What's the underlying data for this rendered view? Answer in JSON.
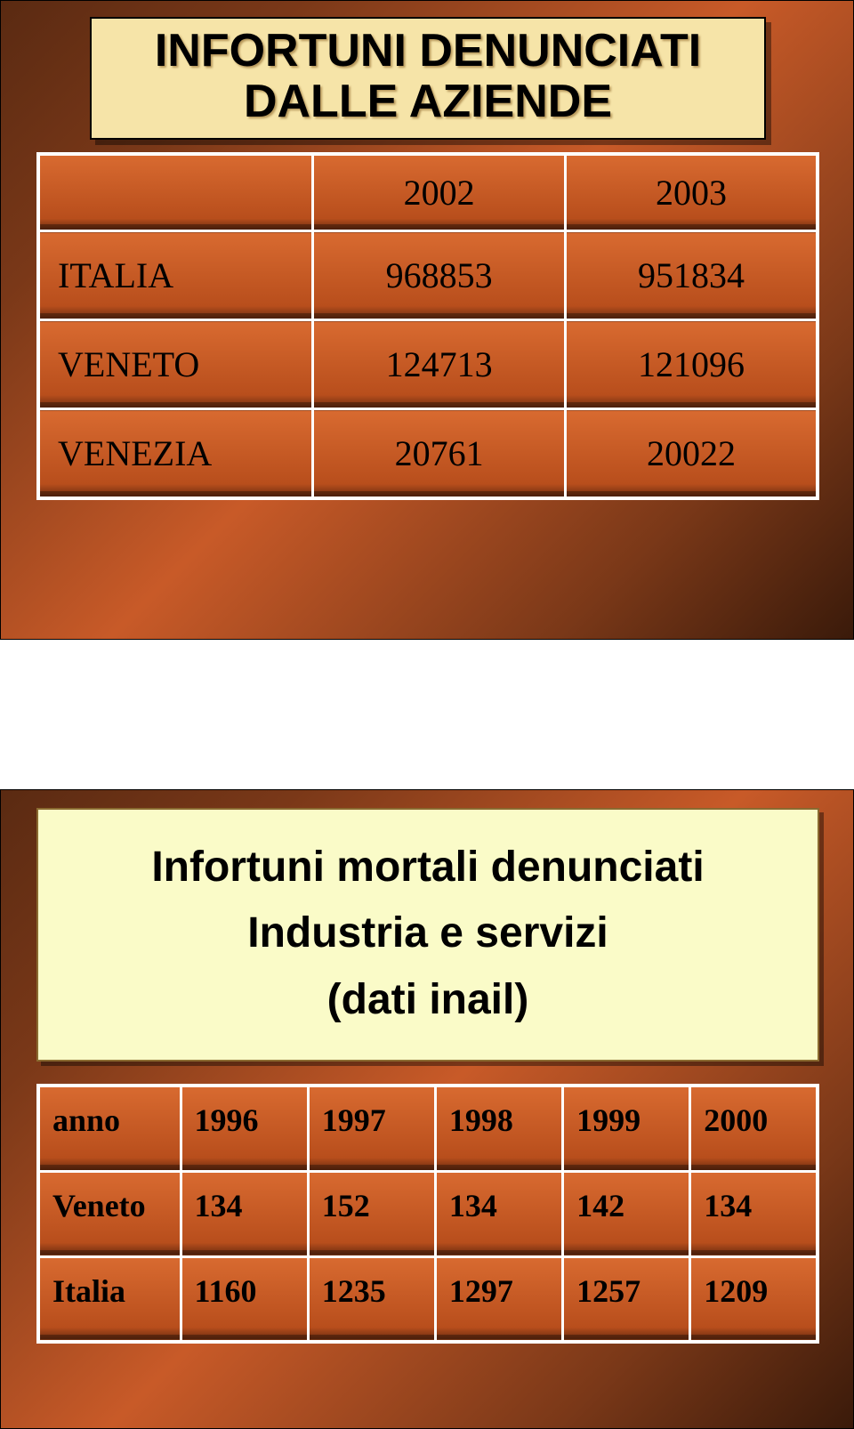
{
  "slide1": {
    "title_line1": "INFORTUNI DENUNCIATI",
    "title_line2": "DALLE AZIENDE",
    "table": {
      "type": "table",
      "columns": [
        "",
        "2002",
        "2003"
      ],
      "rows": [
        {
          "label": "ITALIA",
          "v2002": "968853",
          "v2003": "951834"
        },
        {
          "label": "VENETO",
          "v2002": "124713",
          "v2003": "121096"
        },
        {
          "label": "VENEZIA",
          "v2002": "20761",
          "v2003": "20022"
        }
      ],
      "border_color": "#ffffff",
      "cell_bg_top": "#d86a30",
      "cell_bg_bottom": "#b84e1c",
      "text_color": "#000000",
      "font_family": "Times New Roman",
      "header_fontsize": 40,
      "body_fontsize": 40
    },
    "title_box": {
      "bg_color": "#f6e4a8",
      "border_color": "#000000",
      "title_fontsize": 52,
      "title_color": "#000000",
      "shadow_color": "rgba(140,100,40,0.6)"
    },
    "slide_bg_gradient": [
      "#5a2a12",
      "#7a3818",
      "#c85a28",
      "#7a3818",
      "#3a1a0a"
    ]
  },
  "slide2": {
    "title_line1": "Infortuni mortali denunciati",
    "title_line2": "Industria e servizi",
    "title_line3": "(dati inail)",
    "table": {
      "type": "table",
      "columns": [
        "anno",
        "1996",
        "1997",
        "1998",
        "1999",
        "2000"
      ],
      "rows": [
        {
          "label": "Veneto",
          "c1": "134",
          "c2": "152",
          "c3": "134",
          "c4": "142",
          "c5": "134"
        },
        {
          "label": "Italia",
          "c1": "1160",
          "c2": "1235",
          "c3": "1297",
          "c4": "1257",
          "c5": "1209"
        }
      ],
      "border_color": "#ffffff",
      "cell_bg_top": "#d86a30",
      "cell_bg_bottom": "#b84e1c",
      "text_color": "#000000",
      "font_family": "Times New Roman",
      "fontsize": 36,
      "font_weight": "bold"
    },
    "title_box": {
      "bg_color": "#fafbc8",
      "border_color": "#8a6a30",
      "title_fontsize": 48,
      "title_color": "#000000"
    },
    "slide_bg_gradient": [
      "#5a2a12",
      "#7a3818",
      "#c85a28",
      "#7a3818",
      "#3a1a0a"
    ]
  }
}
